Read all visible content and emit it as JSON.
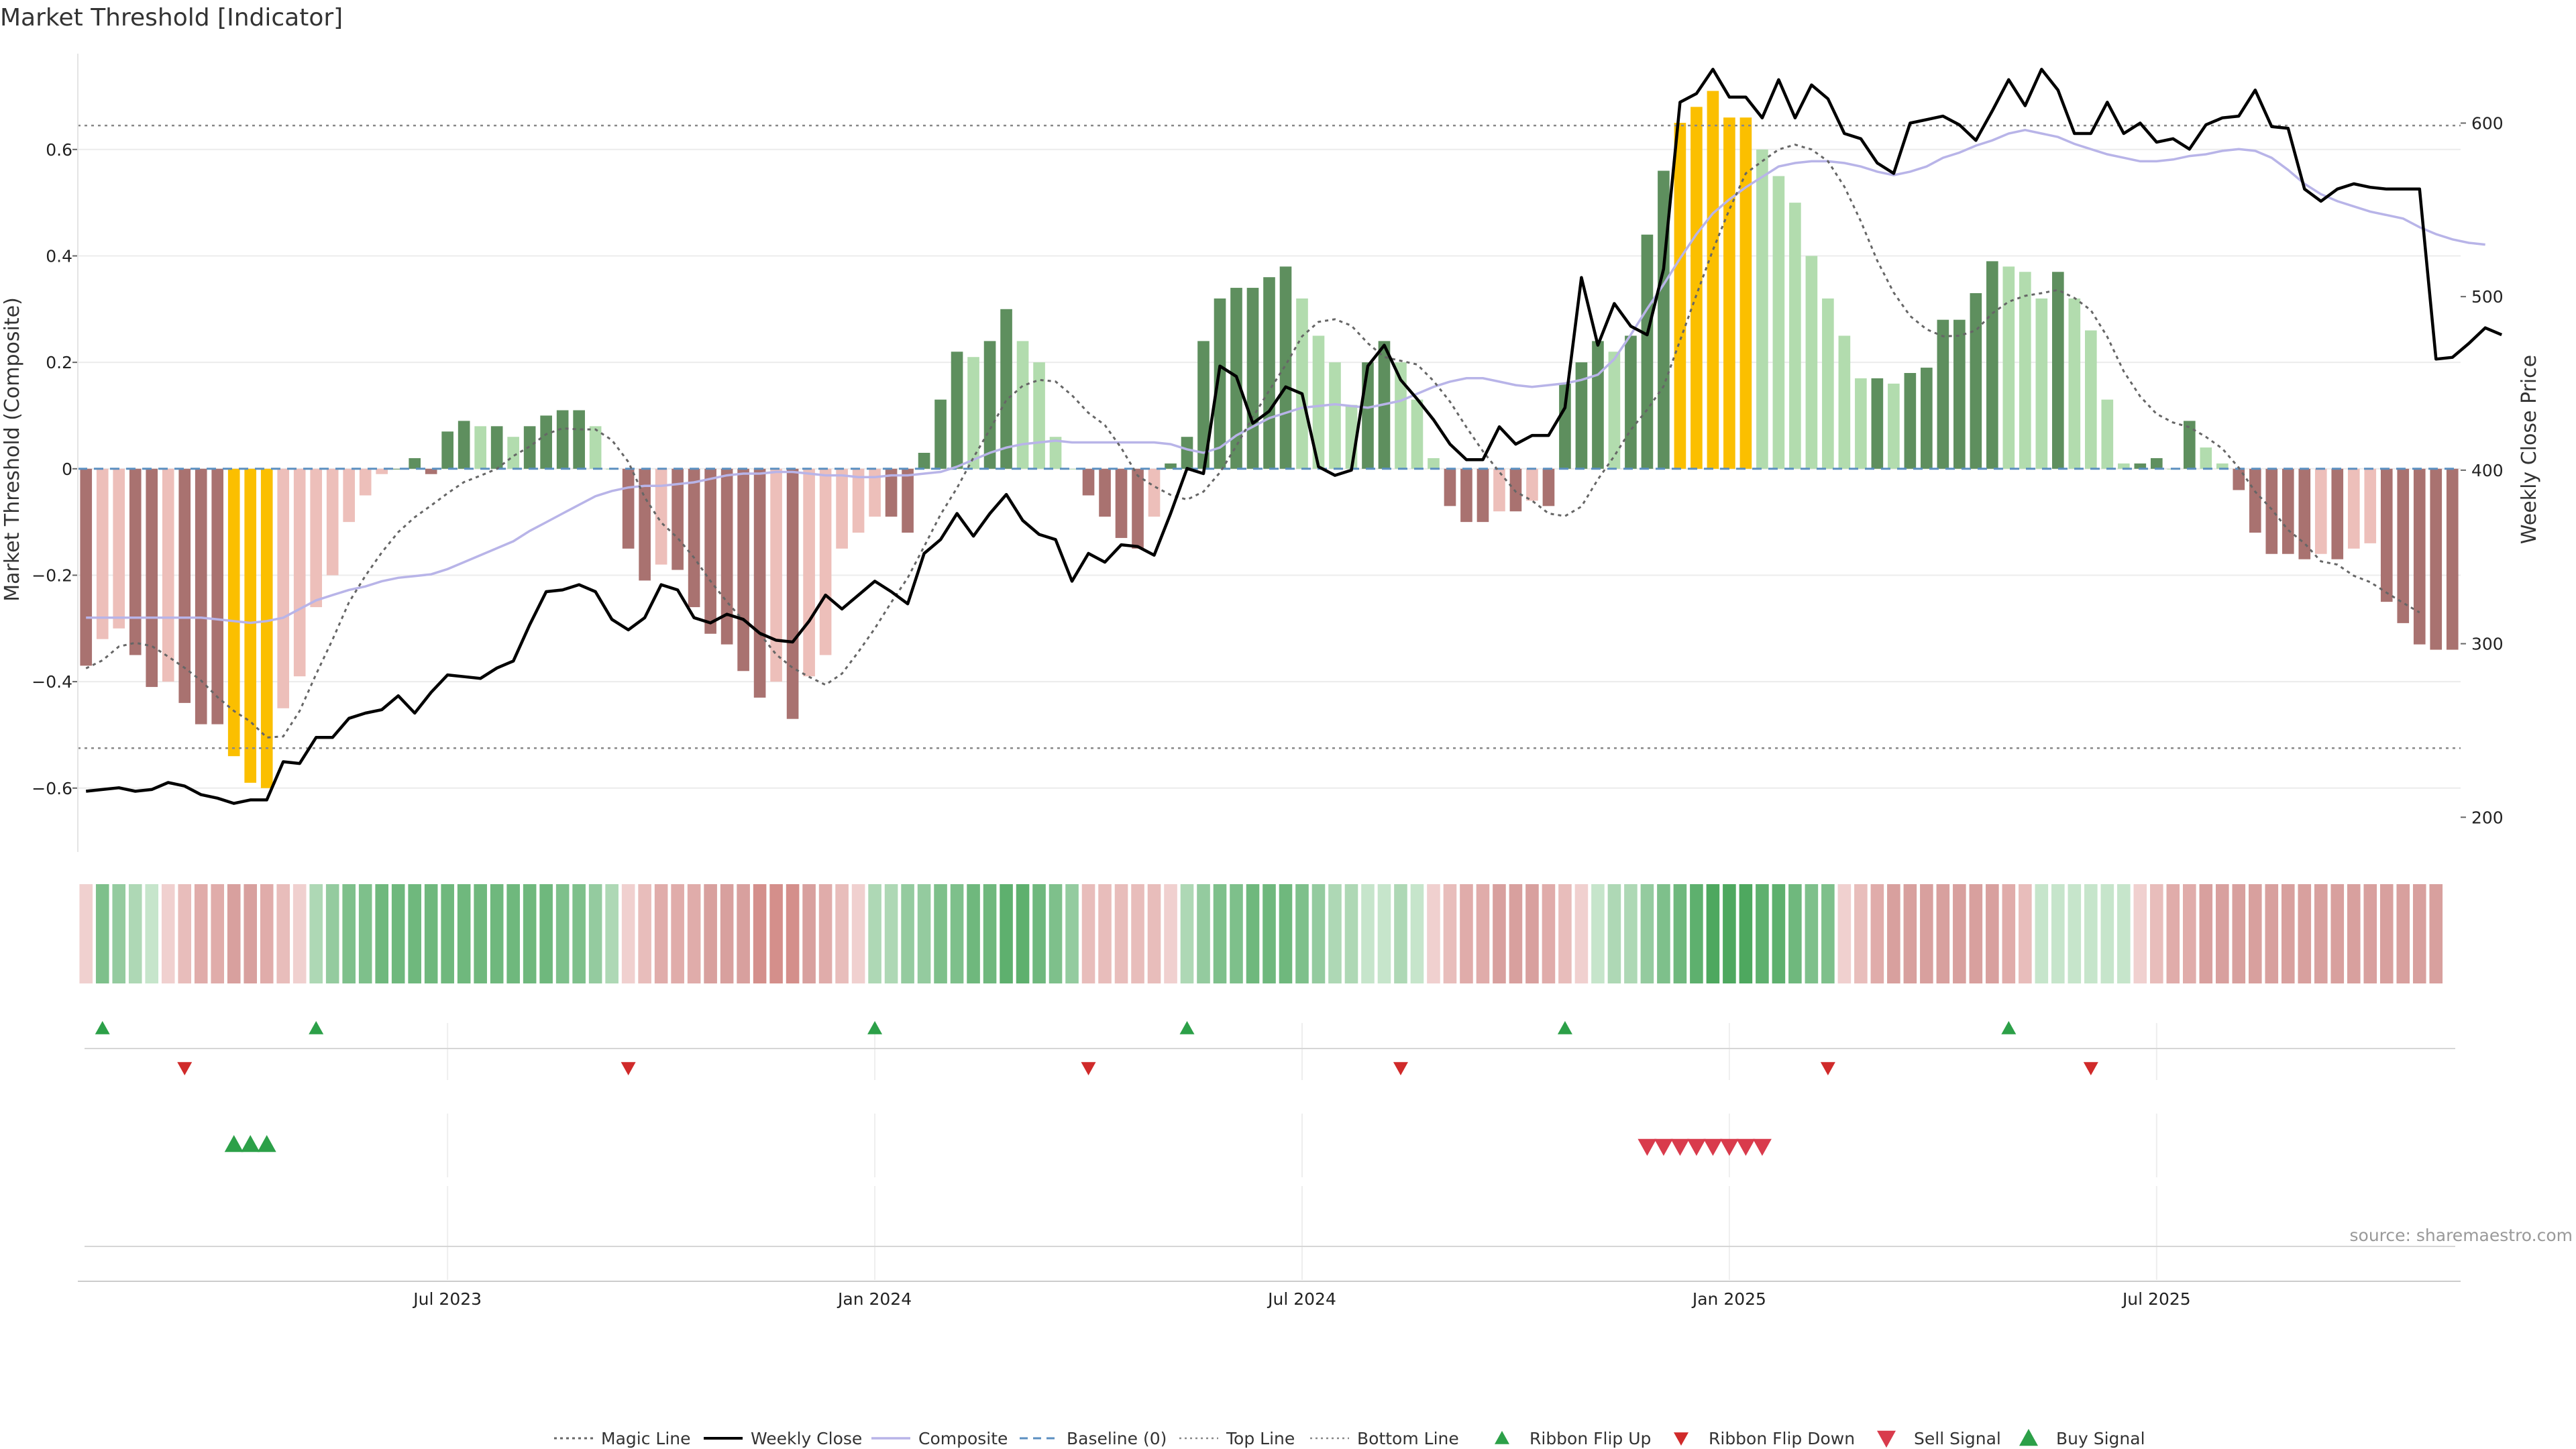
{
  "chart_data": {
    "type": "bar",
    "title": "Market Threshold [Indicator]",
    "ylabel_left": "Market Threshold (Composite)",
    "ylabel_right": "Weekly Close Price",
    "ylim_left": [
      -0.72,
      0.78
    ],
    "ylim_right": [
      180,
      640
    ],
    "yticks_left": [
      "0.6",
      "0.4",
      "0.2",
      "0",
      "−0.2",
      "−0.4",
      "−0.6"
    ],
    "ytick_values_left": [
      0.6,
      0.4,
      0.2,
      0,
      -0.2,
      -0.4,
      -0.6
    ],
    "yticks_right": [
      "600",
      "500",
      "400",
      "300",
      "200"
    ],
    "ytick_values_right": [
      600,
      500,
      400,
      300,
      200
    ],
    "xticks": [
      "Jul 2023",
      "Jan 2024",
      "Jul 2024",
      "Jan 2025",
      "Jul 2025"
    ],
    "xtick_weeks": [
      22,
      48,
      74,
      100,
      126
    ],
    "top_line": 0.645,
    "bottom_line": -0.525,
    "baseline": 0,
    "composite": [
      -0.37,
      -0.32,
      -0.3,
      -0.35,
      -0.41,
      -0.4,
      -0.44,
      -0.48,
      -0.48,
      -0.54,
      -0.59,
      -0.6,
      -0.45,
      -0.39,
      -0.26,
      -0.2,
      -0.1,
      -0.05,
      -0.01,
      0.0,
      0.02,
      -0.01,
      0.07,
      0.09,
      0.08,
      0.08,
      0.06,
      0.08,
      0.1,
      0.11,
      0.11,
      0.08,
      0.0,
      -0.15,
      -0.21,
      -0.18,
      -0.19,
      -0.26,
      -0.31,
      -0.33,
      -0.38,
      -0.43,
      -0.4,
      -0.47,
      -0.39,
      -0.35,
      -0.15,
      -0.12,
      -0.09,
      -0.09,
      -0.12,
      0.03,
      0.13,
      0.22,
      0.21,
      0.24,
      0.3,
      0.24,
      0.2,
      0.06,
      0.0,
      -0.05,
      -0.09,
      -0.13,
      -0.15,
      -0.09,
      0.01,
      0.06,
      0.24,
      0.32,
      0.34,
      0.34,
      0.36,
      0.38,
      0.32,
      0.25,
      0.2,
      0.12,
      0.2,
      0.24,
      0.2,
      0.13,
      0.02,
      -0.07,
      -0.1,
      -0.1,
      -0.08,
      -0.08,
      -0.06,
      -0.07,
      0.16,
      0.2,
      0.24,
      0.22,
      0.25,
      0.44,
      0.56,
      0.65,
      0.68,
      0.71,
      0.66,
      0.66,
      0.6,
      0.55,
      0.5,
      0.4,
      0.32,
      0.25,
      0.17,
      0.17,
      0.16,
      0.18,
      0.19,
      0.28,
      0.28,
      0.33,
      0.39,
      0.38,
      0.37,
      0.32,
      0.37,
      0.32,
      0.26,
      0.13,
      0.01,
      0.01,
      0.02,
      0.0,
      0.09,
      0.04,
      0.01,
      -0.04,
      -0.12,
      -0.16,
      -0.16,
      -0.17,
      -0.16,
      -0.17,
      -0.15,
      -0.14,
      -0.25,
      -0.29,
      -0.33,
      -0.34,
      -0.34
    ],
    "magic_line": [
      -0.375,
      -0.36,
      -0.334,
      -0.327,
      -0.333,
      -0.353,
      -0.374,
      -0.398,
      -0.429,
      -0.455,
      -0.475,
      -0.505,
      -0.503,
      -0.455,
      -0.386,
      -0.321,
      -0.251,
      -0.201,
      -0.157,
      -0.119,
      -0.091,
      -0.069,
      -0.046,
      -0.025,
      -0.013,
      0.0,
      0.024,
      0.042,
      0.065,
      0.076,
      0.074,
      0.074,
      0.054,
      0.013,
      -0.054,
      -0.101,
      -0.13,
      -0.167,
      -0.211,
      -0.25,
      -0.285,
      -0.31,
      -0.349,
      -0.374,
      -0.391,
      -0.406,
      -0.385,
      -0.344,
      -0.3,
      -0.251,
      -0.205,
      -0.146,
      -0.086,
      -0.036,
      0.021,
      0.074,
      0.129,
      0.156,
      0.167,
      0.164,
      0.138,
      0.105,
      0.082,
      0.039,
      -0.013,
      -0.033,
      -0.049,
      -0.058,
      -0.043,
      -0.007,
      0.043,
      0.097,
      0.147,
      0.195,
      0.249,
      0.276,
      0.281,
      0.269,
      0.236,
      0.21,
      0.203,
      0.196,
      0.165,
      0.126,
      0.078,
      0.033,
      -0.006,
      -0.043,
      -0.06,
      -0.084,
      -0.089,
      -0.071,
      -0.02,
      0.024,
      0.073,
      0.111,
      0.155,
      0.241,
      0.327,
      0.411,
      0.487,
      0.555,
      0.578,
      0.6,
      0.609,
      0.6,
      0.578,
      0.53,
      0.465,
      0.391,
      0.331,
      0.287,
      0.262,
      0.249,
      0.25,
      0.26,
      0.292,
      0.314,
      0.325,
      0.33,
      0.336,
      0.321,
      0.298,
      0.248,
      0.183,
      0.136,
      0.103,
      0.087,
      0.078,
      0.06,
      0.038,
      0.002,
      -0.043,
      -0.076,
      -0.115,
      -0.14,
      -0.174,
      -0.18,
      -0.201,
      -0.213,
      -0.233,
      -0.252,
      -0.27
    ],
    "weekly_close": [
      215,
      216,
      217,
      215,
      216,
      220,
      218,
      213,
      211,
      208,
      210,
      210,
      232,
      231,
      246,
      246,
      257,
      260,
      262,
      270,
      260,
      272,
      282,
      281,
      280,
      286,
      290,
      311,
      330,
      331,
      334,
      330,
      314,
      308,
      315,
      334,
      331,
      315,
      312,
      317,
      314,
      306,
      302,
      301,
      313,
      328,
      320,
      328,
      336,
      330,
      323,
      352,
      360,
      375,
      362,
      375,
      386,
      371,
      363,
      360,
      336,
      352,
      347,
      357,
      356,
      351,
      375,
      401,
      398,
      460,
      454,
      427,
      434,
      448,
      444,
      402,
      397,
      400,
      460,
      472,
      452,
      441,
      429,
      415,
      406,
      406,
      425,
      415,
      420,
      420,
      436,
      511,
      472,
      496,
      483,
      478,
      516,
      612,
      617,
      631,
      615,
      615,
      603,
      625,
      603,
      622,
      614,
      594,
      591,
      577,
      571,
      600,
      602,
      604,
      599,
      590,
      607,
      625,
      610,
      631,
      619,
      594,
      594,
      612,
      594,
      600,
      589,
      591,
      585,
      599,
      603,
      604,
      619,
      598,
      597,
      562,
      555,
      562,
      565,
      563,
      562,
      562,
      562,
      464,
      465,
      473,
      482,
      478
    ],
    "trend": [
      315,
      315,
      315,
      315,
      315,
      315,
      315,
      315,
      314,
      313,
      312,
      313,
      315,
      320,
      325,
      328,
      331,
      333,
      336,
      338,
      339,
      340,
      343,
      347,
      351,
      355,
      359,
      365,
      370,
      375,
      380,
      385,
      388,
      390,
      391,
      391,
      392,
      393,
      395,
      397,
      398,
      398,
      399,
      399,
      398,
      397,
      397,
      396,
      396,
      397,
      397,
      398,
      399,
      402,
      406,
      410,
      413,
      415,
      416,
      417,
      416,
      416,
      416,
      416,
      416,
      416,
      415,
      412,
      410,
      413,
      420,
      425,
      430,
      433,
      436,
      437,
      438,
      437,
      436,
      438,
      440,
      444,
      448,
      451,
      453,
      453,
      451,
      449,
      448,
      449,
      450,
      452,
      455,
      464,
      478,
      493,
      507,
      522,
      536,
      548,
      556,
      563,
      569,
      575,
      577,
      578,
      578,
      577,
      575,
      572,
      570,
      572,
      575,
      580,
      583,
      587,
      590,
      594,
      596,
      594,
      592,
      588,
      585,
      582,
      580,
      578,
      578,
      579,
      581,
      582,
      584,
      585,
      584,
      580,
      573,
      565,
      559,
      555,
      552,
      549,
      547,
      545,
      540,
      536,
      533,
      531,
      530
    ],
    "ribbon_colors": [
      "#f0d0cf",
      "#7ec08b",
      "#94cb9f",
      "#aed8b5",
      "#c6e5cb",
      "#f0d0cf",
      "#e8bdbb",
      "#e0acaa",
      "#e0acaa",
      "#d8a09e",
      "#d8a09e",
      "#e0acaa",
      "#e8bdbb",
      "#f0d0cf",
      "#aed8b5",
      "#94cb9f",
      "#7ec08b",
      "#7ec08b",
      "#6fb87d",
      "#6fb87d",
      "#6fb87d",
      "#6fb87d",
      "#6fb87d",
      "#6fb87d",
      "#6fb87d",
      "#6fb87d",
      "#6fb87d",
      "#6fb87d",
      "#6fb87d",
      "#7ec08b",
      "#7ec08b",
      "#94cb9f",
      "#aed8b5",
      "#f0d0cf",
      "#e8bdbb",
      "#e0acaa",
      "#e0acaa",
      "#e0acaa",
      "#d8a09e",
      "#d8a09e",
      "#d8a09e",
      "#d48f8b",
      "#d48f8b",
      "#d48f8b",
      "#d8a09e",
      "#e0acaa",
      "#e8bdbb",
      "#f0d0cf",
      "#aed8b5",
      "#aed8b5",
      "#94cb9f",
      "#94cb9f",
      "#7ec08b",
      "#7ec08b",
      "#6fb87d",
      "#6fb87d",
      "#5eb06e",
      "#5eb06e",
      "#6fb87d",
      "#7ec08b",
      "#94cb9f",
      "#e8bdbb",
      "#e8bdbb",
      "#e8bdbb",
      "#e8bdbb",
      "#e8bdbb",
      "#f0d0cf",
      "#aed8b5",
      "#94cb9f",
      "#7ec08b",
      "#7ec08b",
      "#6fb87d",
      "#6fb87d",
      "#6fb87d",
      "#7ec08b",
      "#94cb9f",
      "#aed8b5",
      "#aed8b5",
      "#c6e5cb",
      "#c6e5cb",
      "#aed8b5",
      "#c6e5cb",
      "#f0d0cf",
      "#e8bdbb",
      "#e0acaa",
      "#e0acaa",
      "#d8a09e",
      "#d8a09e",
      "#d8a09e",
      "#e0acaa",
      "#e8bdbb",
      "#f0d0cf",
      "#c6e5cb",
      "#aed8b5",
      "#aed8b5",
      "#94cb9f",
      "#7ec08b",
      "#6fb87d",
      "#5eb06e",
      "#4ea85f",
      "#4ea85f",
      "#4ea85f",
      "#5eb06e",
      "#5eb06e",
      "#6fb87d",
      "#7ec08b",
      "#7ec08b",
      "#f0d0cf",
      "#e8bdbb",
      "#e0acaa",
      "#d8a09e",
      "#d8a09e",
      "#d8a09e",
      "#d8a09e",
      "#d8a09e",
      "#d8a09e",
      "#d8a09e",
      "#e0acaa",
      "#e8bdbb",
      "#c6e5cb",
      "#c6e5cb",
      "#c6e5cb",
      "#c6e5cb",
      "#c6e5cb",
      "#c6e5cb",
      "#f0d0cf",
      "#e8bdbb",
      "#e0acaa",
      "#e0acaa",
      "#d8a09e",
      "#d8a09e",
      "#d8a09e",
      "#d8a09e",
      "#d8a09e",
      "#d8a09e",
      "#d8a09e",
      "#d8a09e",
      "#d8a09e",
      "#d8a09e",
      "#d8a09e",
      "#d8a09e",
      "#d8a09e",
      "#d8a09e",
      "#d8a09e"
    ],
    "ribbon_flip_up_weeks": [
      1,
      14,
      48,
      67,
      90,
      117
    ],
    "ribbon_flip_down_weeks": [
      6,
      33,
      61,
      80,
      106,
      122
    ],
    "buy_signal_weeks": [
      9,
      10,
      11
    ],
    "sell_signal_weeks": [
      95,
      96,
      97,
      98,
      99,
      100,
      101,
      102
    ],
    "legend": [
      "Magic Line",
      "Weekly Close",
      "Composite",
      "Baseline (0)",
      "Top Line",
      "Bottom Line",
      "Ribbon Flip Up",
      "Ribbon Flip Down",
      "Sell Signal",
      "Buy Signal"
    ],
    "source": "source: sharemaestro.com"
  },
  "colors": {
    "positive_dark": "#5e8f5e",
    "positive_light": "#b2dcae",
    "negative_dark": "#a97270",
    "negative_light": "#edbfba",
    "extreme": "#fbbf00",
    "magic_line": "#666666",
    "weekly_close": "#000000",
    "trend": "#b8b4e8",
    "baseline": "#5b8fc0",
    "flip_up": "#2ca048",
    "flip_down": "#d02a2a",
    "buy": "#2ca048",
    "sell": "#d93b4c"
  }
}
